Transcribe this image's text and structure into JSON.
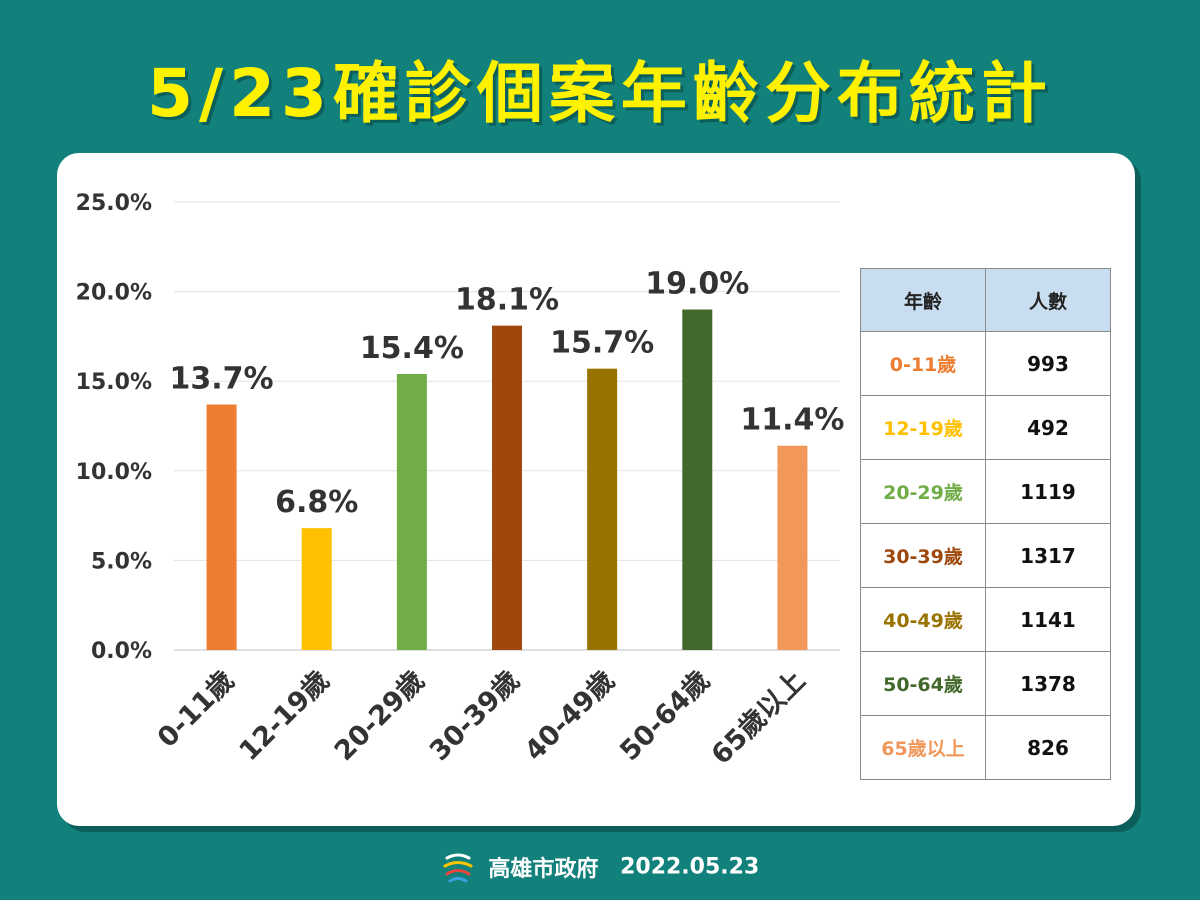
{
  "title": "5/23確診個案年齡分布統計",
  "chart_data": {
    "type": "bar",
    "categories": [
      "0-11歲",
      "12-19歲",
      "20-29歲",
      "30-39歲",
      "40-49歲",
      "50-64歲",
      "65歲以上"
    ],
    "values": [
      13.7,
      6.8,
      15.4,
      18.1,
      15.7,
      19.0,
      11.4
    ],
    "value_labels": [
      "13.7%",
      "6.8%",
      "15.4%",
      "18.1%",
      "15.7%",
      "19.0%",
      "11.4%"
    ],
    "colors": [
      "#ed7d31",
      "#ffc000",
      "#70ad47",
      "#9e480e",
      "#997300",
      "#43682b",
      "#f1975a"
    ],
    "ylim": [
      0,
      25
    ],
    "yticks": [
      0,
      5,
      10,
      15,
      20,
      25
    ],
    "ytick_labels": [
      "0.0%",
      "5.0%",
      "10.0%",
      "15.0%",
      "20.0%",
      "25.0%"
    ],
    "grid": true,
    "legend": "none"
  },
  "table": {
    "headers": [
      "年齡",
      "人數"
    ],
    "rows": [
      {
        "age": "0-11歲",
        "count": "993",
        "color": "#ed7d31"
      },
      {
        "age": "12-19歲",
        "count": "492",
        "color": "#ffc000"
      },
      {
        "age": "20-29歲",
        "count": "1119",
        "color": "#70ad47"
      },
      {
        "age": "30-39歲",
        "count": "1317",
        "color": "#9e480e"
      },
      {
        "age": "40-49歲",
        "count": "1141",
        "color": "#997300"
      },
      {
        "age": "50-64歲",
        "count": "1378",
        "color": "#43682b"
      },
      {
        "age": "65歲以上",
        "count": "826",
        "color": "#f1975a"
      }
    ]
  },
  "footer": {
    "org": "高雄市政府",
    "date": "2022.05.23",
    "logo_icon": "kaohsiung-logo-icon"
  },
  "colors": {
    "background": "#12807b",
    "title": "#fff200",
    "panel": "#ffffff",
    "table_header": "#c8def0"
  }
}
